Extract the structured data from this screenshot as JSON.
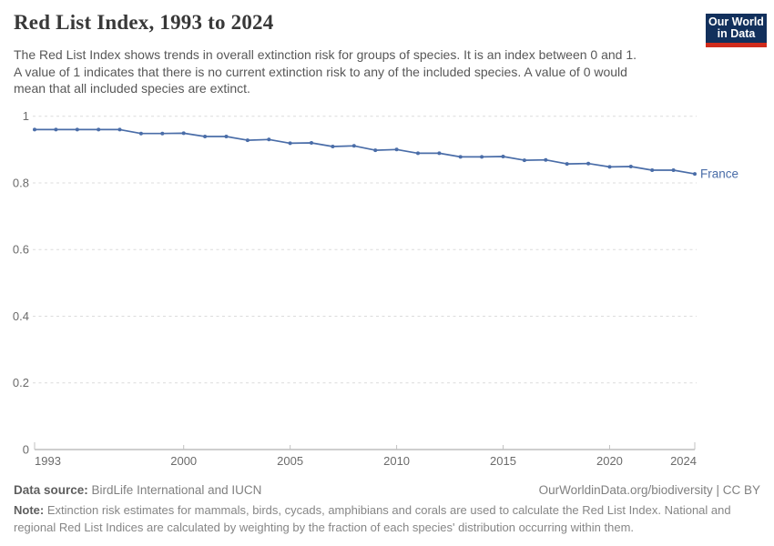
{
  "header": {
    "title": "Red List Index, 1993 to 2024",
    "subtitle_lines": [
      "The Red List Index shows trends in overall extinction risk for groups of species. It is an index between 0 and 1.",
      "A value of 1 indicates that there is no current extinction risk to any of the included species. A value of 0 would",
      "mean that all included species are extinct."
    ],
    "logo": {
      "line1": "Our World",
      "line2": "in Data",
      "bg_color": "#12305c",
      "accent_color": "#d02b1c"
    }
  },
  "chart_data": {
    "type": "line",
    "title": "Red List Index, 1993 to 2024",
    "xlabel": "",
    "ylabel": "",
    "xlim": [
      1993,
      2024
    ],
    "ylim": [
      0,
      1
    ],
    "x_ticks": [
      1993,
      2000,
      2005,
      2010,
      2015,
      2020,
      2024
    ],
    "y_ticks": [
      0,
      0.2,
      0.4,
      0.6,
      0.8,
      1
    ],
    "grid": "horizontal-dashed",
    "legend_position": "end-of-line-label",
    "series": [
      {
        "name": "France",
        "color": "#4a6da8",
        "x": [
          1993,
          1994,
          1995,
          1996,
          1997,
          1998,
          1999,
          2000,
          2001,
          2002,
          2003,
          2004,
          2005,
          2006,
          2007,
          2008,
          2009,
          2010,
          2011,
          2012,
          2013,
          2014,
          2015,
          2016,
          2017,
          2018,
          2019,
          2020,
          2021,
          2022,
          2023,
          2024
        ],
        "values": [
          0.96,
          0.96,
          0.96,
          0.96,
          0.96,
          0.948,
          0.948,
          0.949,
          0.939,
          0.939,
          0.928,
          0.93,
          0.919,
          0.92,
          0.909,
          0.911,
          0.898,
          0.9,
          0.889,
          0.889,
          0.878,
          0.878,
          0.879,
          0.868,
          0.869,
          0.857,
          0.858,
          0.848,
          0.849,
          0.838,
          0.838,
          0.827
        ]
      }
    ]
  },
  "footer": {
    "data_source_label": "Data source:",
    "data_source": "BirdLife International and IUCN",
    "attribution": "OurWorldinData.org/biodiversity | CC BY",
    "note_label": "Note:",
    "note_lines": [
      "Extinction risk estimates for mammals, birds, cycads, amphibians and corals are used to calculate the Red List Index. National and",
      "regional Red List Indices are calculated by weighting by the fraction of each species' distribution occurring within them."
    ]
  }
}
